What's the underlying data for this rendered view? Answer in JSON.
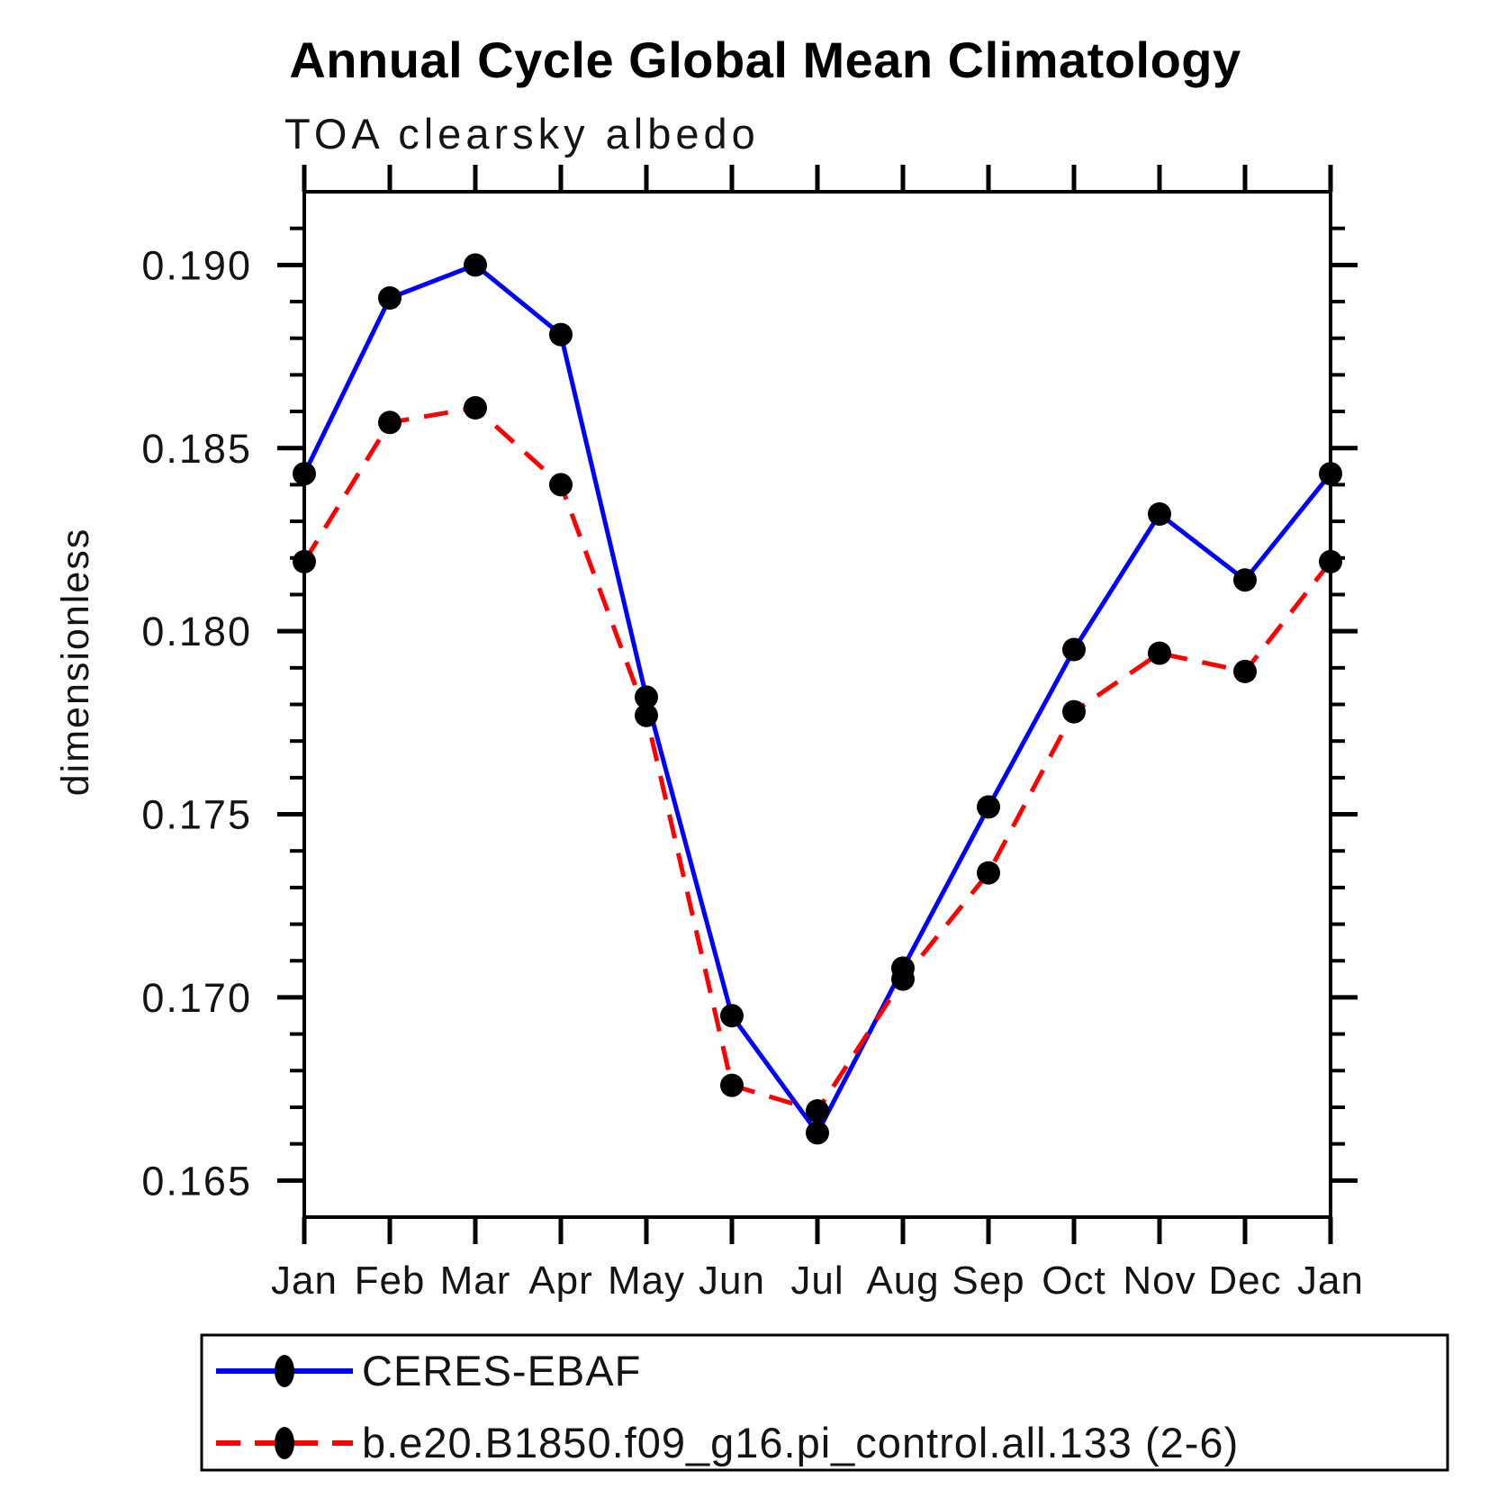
{
  "page": {
    "background": "#ffffff",
    "text_color": "#141414"
  },
  "chart_data": {
    "type": "line",
    "title": "Annual Cycle Global Mean Climatology",
    "subtitle": "TOA clearsky albedo",
    "ylabel": "dimensionless",
    "xlabel": "",
    "categories": [
      "Jan",
      "Feb",
      "Mar",
      "Apr",
      "May",
      "Jun",
      "Jul",
      "Aug",
      "Sep",
      "Oct",
      "Nov",
      "Dec",
      "Jan"
    ],
    "ylim": [
      0.164,
      0.192
    ],
    "ytick_major": [
      0.165,
      0.17,
      0.175,
      0.18,
      0.185,
      0.19
    ],
    "ytick_labels": [
      "0.165",
      "0.170",
      "0.175",
      "0.180",
      "0.185",
      "0.190"
    ],
    "ytick_minor_step": 0.001,
    "grid": false,
    "legend_position": "bottom",
    "axis_color": "#000000",
    "marker_color": "#000000",
    "series": [
      {
        "name": "CERES-EBAF",
        "color": "#0000ff",
        "line_style": "solid",
        "marker": "circle",
        "values": [
          0.1843,
          0.1891,
          0.19,
          0.1881,
          0.1782,
          0.1695,
          0.1663,
          0.1708,
          0.1752,
          0.1795,
          0.1832,
          0.1814,
          0.1843
        ]
      },
      {
        "name": "b.e20.B1850.f09_g16.pi_control.all.133 (2-6)",
        "color": "#ff0000",
        "line_style": "dashed",
        "marker": "circle",
        "values": [
          0.1819,
          0.1857,
          0.1861,
          0.184,
          0.1777,
          0.1676,
          0.1669,
          0.1705,
          0.1734,
          0.1778,
          0.1794,
          0.1789,
          0.1819
        ]
      }
    ]
  }
}
